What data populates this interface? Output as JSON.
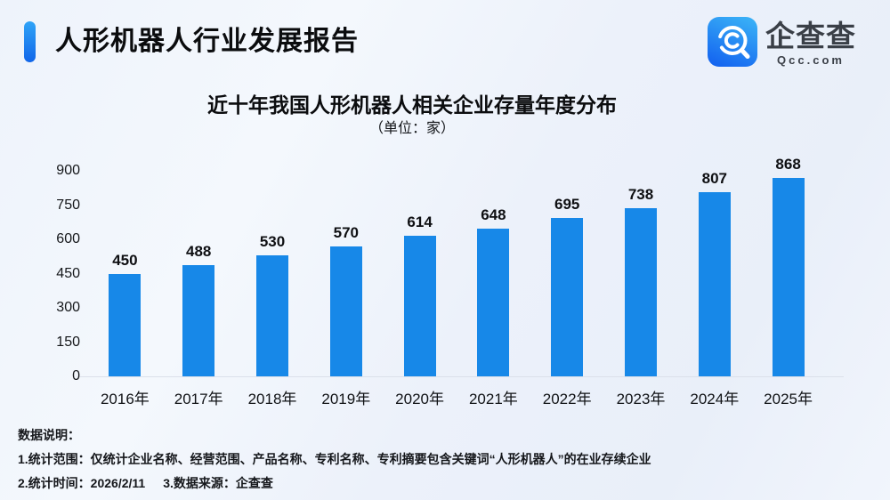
{
  "header": {
    "title": "人形机器人行业发展报告",
    "brand": {
      "name": "企查查",
      "domain": "Qcc.com"
    }
  },
  "chart_data": {
    "type": "bar",
    "title": "近十年我国人形机器人相关企业存量年度分布",
    "subtitle": "（单位：家）",
    "categories": [
      "2016年",
      "2017年",
      "2018年",
      "2019年",
      "2020年",
      "2021年",
      "2022年",
      "2023年",
      "2024年",
      "2025年"
    ],
    "values": [
      450,
      488,
      530,
      570,
      614,
      648,
      695,
      738,
      807,
      868
    ],
    "y_ticks": [
      0,
      150,
      300,
      450,
      600,
      750,
      900
    ],
    "ylim": [
      0,
      900
    ],
    "xlabel": "",
    "ylabel": "",
    "grid": false,
    "legend": false,
    "bar_color": "#1788e8",
    "value_labels": true
  },
  "footer": {
    "heading": "数据说明：",
    "note1": "1.统计范围：仅统计企业名称、经营范围、产品名称、专利名称、专利摘要包含关键词“人形机器人”的在业存续企业",
    "note2_time": "2.统计时间：2026/2/11",
    "note2_source": "3.数据来源：企查查"
  },
  "colors": {
    "bar": "#1788e8",
    "accent_top": "#2fa4f7",
    "accent_bottom": "#1166e9",
    "logo_top": "#38aef6",
    "logo_bottom": "#1566f0",
    "background": "#eef2fb",
    "axis_line": "#dbe0ea",
    "text_dark": "#0c0d0f"
  }
}
